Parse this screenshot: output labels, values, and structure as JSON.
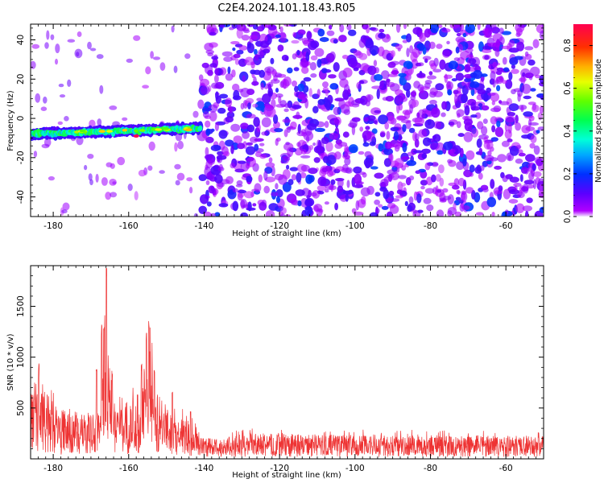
{
  "title": "C2E4.2024.101.18.43.R05",
  "chart_data": [
    {
      "type": "heatmap",
      "xlabel": "Height of straight line (km)",
      "ylabel": "Frequency (Hz)",
      "xlim": [
        -186,
        -50
      ],
      "ylim": [
        -50,
        48
      ],
      "xticks": [
        -180,
        -160,
        -140,
        -120,
        -100,
        -80,
        -60
      ],
      "yticks": [
        -40,
        -20,
        0,
        20,
        40
      ],
      "colorbar": {
        "label": "Normalized spectral amplitude",
        "range": [
          0.0,
          0.9
        ],
        "ticks": [
          "0.0",
          "0.2",
          "0.4",
          "0.6",
          "0.8"
        ],
        "colormap": "gist_rainbow",
        "color_low": "#b000ff",
        "color_high": "#ff0040"
      },
      "features": [
        {
          "name": "narrowband line",
          "x_range": [
            -186,
            -141
          ],
          "frequency_start": -8,
          "frequency_end": -5,
          "peak_amplitude": 0.9,
          "peak_location": {
            "x": -158,
            "frequency": -9
          }
        },
        {
          "name": "broadband noise",
          "x_range": [
            -141,
            -50
          ],
          "frequency_range": [
            -50,
            48
          ],
          "typical_amplitude": 0.2
        }
      ]
    },
    {
      "type": "line",
      "xlabel": "Height of straight line (km)",
      "ylabel": "SNR (10 * v/v)",
      "xlim": [
        -186,
        -50
      ],
      "ylim": [
        0,
        1900
      ],
      "xticks": [
        -180,
        -160,
        -140,
        -120,
        -100,
        -80,
        -60
      ],
      "yticks": [
        500,
        1000,
        1500
      ],
      "line_color": "#ee3333",
      "envelope": {
        "x": [
          -186,
          -184,
          -182,
          -180,
          -178,
          -176,
          -174,
          -172,
          -170,
          -168,
          -167,
          -166,
          -165,
          -164,
          -162,
          -160,
          -158,
          -156,
          -155,
          -154,
          -152,
          -150,
          -148,
          -146,
          -144,
          -142,
          -140,
          -138,
          -134,
          -130,
          -120,
          -110,
          -100,
          -90,
          -80,
          -70,
          -60,
          -50
        ],
        "y": [
          600,
          800,
          700,
          550,
          480,
          520,
          460,
          430,
          470,
          520,
          900,
          1880,
          900,
          600,
          650,
          560,
          600,
          900,
          1380,
          1000,
          600,
          540,
          520,
          430,
          380,
          320,
          230,
          200,
          220,
          250,
          250,
          240,
          240,
          240,
          240,
          230,
          230,
          220
        ]
      },
      "peaks": [
        {
          "x": -183.8,
          "y": 940
        },
        {
          "x": -168.5,
          "y": 920
        },
        {
          "x": -167.2,
          "y": 1320
        },
        {
          "x": -165.9,
          "y": 1880
        },
        {
          "x": -164.4,
          "y": 880
        },
        {
          "x": -156.6,
          "y": 960
        },
        {
          "x": -155.3,
          "y": 1270
        },
        {
          "x": -154.6,
          "y": 1370
        },
        {
          "x": -153.2,
          "y": 880
        },
        {
          "x": -148.4,
          "y": 680
        },
        {
          "x": -143.6,
          "y": 480
        }
      ]
    }
  ]
}
